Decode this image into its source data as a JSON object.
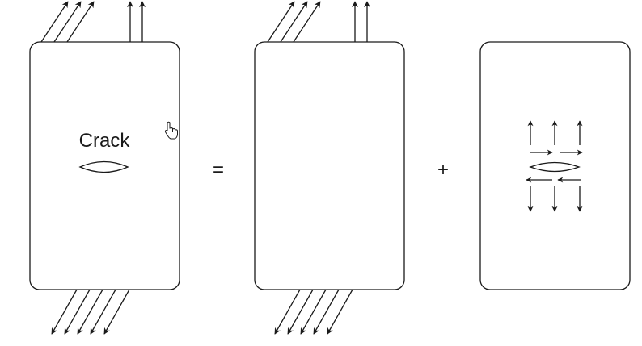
{
  "diagram": {
    "crack_label": "Crack",
    "equals_sign": "=",
    "plus_sign": "+"
  },
  "colors": {
    "stroke": "#1a1a1a",
    "background": "#ffffff"
  },
  "icons": {
    "cursor": "hand-pointer-icon"
  }
}
